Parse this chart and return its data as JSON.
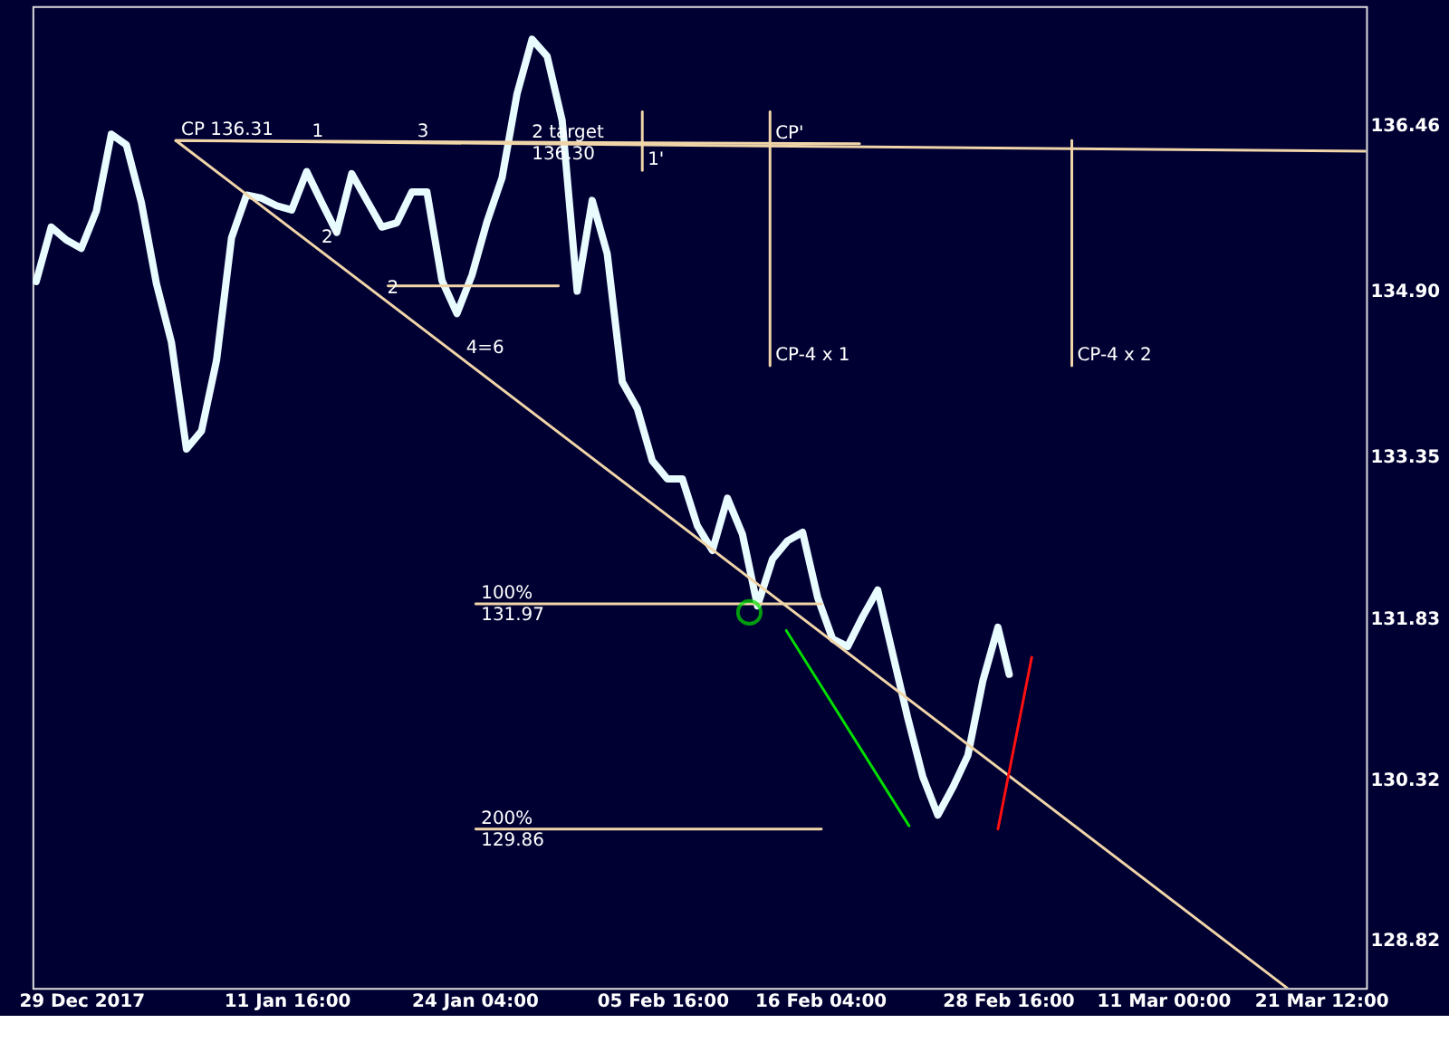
{
  "chart_data": {
    "type": "line",
    "xlim": [
      "2017-12-25T18:00",
      "2018-03-24T12:00"
    ],
    "ylim": [
      128.37,
      137.57
    ],
    "xticks": [
      {
        "value": "2017-12-29",
        "label": "29 Dec 2017"
      },
      {
        "value": "2018-01-11T16:00",
        "label": "11 Jan 16:00"
      },
      {
        "value": "2018-01-24T04:00",
        "label": "24 Jan 04:00"
      },
      {
        "value": "2018-02-05T16:00",
        "label": "05 Feb 16:00"
      },
      {
        "value": "2018-02-16T04:00",
        "label": "16 Feb 04:00"
      },
      {
        "value": "2018-02-28T16:00",
        "label": "28 Feb 16:00"
      },
      {
        "value": "2018-03-11",
        "label": "11 Mar 00:00"
      },
      {
        "value": "2018-03-21T12:00",
        "label": "21 Mar 12:00"
      }
    ],
    "yticks": [
      128.82,
      130.32,
      131.83,
      133.35,
      {
        "value": 134.9,
        "label": "134.90"
      },
      136.46
    ],
    "grid": false,
    "series": [
      {
        "color": "#e8fbff",
        "x": [
          "2017-12-26",
          "2017-12-27",
          "2017-12-28",
          "2017-12-29",
          "2017-12-30",
          "2017-12-31",
          "2018-01-01",
          "2018-01-02",
          "2018-01-03",
          "2018-01-04",
          "2018-01-05",
          "2018-01-06",
          "2018-01-07",
          "2018-01-08",
          "2018-01-09",
          "2018-01-10",
          "2018-01-11",
          "2018-01-12",
          "2018-01-13",
          "2018-01-14",
          "2018-01-15",
          "2018-01-16",
          "2018-01-17",
          "2018-01-18",
          "2018-01-19",
          "2018-01-20",
          "2018-01-21",
          "2018-01-22",
          "2018-01-23",
          "2018-01-24",
          "2018-01-25",
          "2018-01-26",
          "2018-01-27",
          "2018-01-28",
          "2018-01-29",
          "2018-01-30",
          "2018-01-31",
          "2018-02-01",
          "2018-02-02",
          "2018-02-03",
          "2018-02-04",
          "2018-02-05",
          "2018-02-06",
          "2018-02-07",
          "2018-02-08",
          "2018-02-09",
          "2018-02-10",
          "2018-02-11",
          "2018-02-12",
          "2018-02-13",
          "2018-02-14",
          "2018-02-15",
          "2018-02-16",
          "2018-02-17",
          "2018-02-18",
          "2018-02-19",
          "2018-02-20",
          "2018-02-21",
          "2018-02-22",
          "2018-02-23",
          "2018-02-24",
          "2018-02-25",
          "2018-02-26",
          "2018-02-27",
          "2018-02-28",
          "2018-02-28T18:00"
        ],
        "values": [
          134.99,
          135.5,
          135.38,
          135.3,
          135.65,
          136.37,
          136.27,
          135.73,
          134.97,
          134.42,
          133.42,
          133.59,
          134.25,
          135.4,
          135.8,
          135.77,
          135.7,
          135.66,
          136.02,
          135.73,
          135.45,
          136.0,
          135.75,
          135.5,
          135.54,
          135.83,
          135.83,
          135.0,
          134.69,
          135.05,
          135.55,
          135.96,
          136.75,
          137.26,
          137.1,
          136.5,
          134.9,
          135.75,
          135.25,
          134.05,
          133.8,
          133.31,
          133.14,
          133.14,
          132.7,
          132.47,
          132.96,
          132.62,
          131.95,
          132.39,
          132.56,
          132.64,
          132.03,
          131.64,
          131.57,
          131.85,
          132.1,
          131.5,
          130.9,
          130.35,
          129.99,
          130.25,
          130.55,
          131.25,
          131.75,
          131.31
        ]
      },
      {
        "color": "#f0d5a8",
        "x": [
          "2018-01-04T07:00",
          "2018-03-19T06:00"
        ],
        "values": [
          136.31,
          128.37
        ]
      },
      {
        "color": "#f0d5a8",
        "x": [
          "2018-01-04T07:00",
          "2018-03-24T12:00"
        ],
        "values": [
          136.31,
          136.21
        ]
      },
      {
        "color": "#f0d5a8",
        "x": [
          "2018-01-04T07:00",
          "2018-02-18T19:00"
        ],
        "values": [
          136.31,
          136.28
        ]
      },
      {
        "color": "#f0d5a8",
        "x": [
          "2018-01-18T10:00",
          "2018-01-29T18:00"
        ],
        "values": [
          134.95,
          134.95
        ]
      },
      {
        "color": "#f0d5a8",
        "x": [
          "2018-01-24T06:00",
          "2018-02-16T06:00"
        ],
        "values": [
          131.97,
          131.97
        ]
      },
      {
        "color": "#f0d5a8",
        "x": [
          "2018-01-24T06:00",
          "2018-02-16T06:00"
        ],
        "values": [
          129.86,
          129.86
        ]
      },
      {
        "color": "#f0d5a8",
        "x": [
          "2018-02-12T20:00",
          "2018-02-12T20:00"
        ],
        "values": [
          136.58,
          134.2
        ]
      },
      {
        "color": "#f0d5a8",
        "x": [
          "2018-03-04T22:00",
          "2018-03-04T22:00"
        ],
        "values": [
          136.31,
          134.2
        ]
      },
      {
        "color": "#f0d5a8",
        "x": [
          "2018-02-04T08:00",
          "2018-02-04T08:00"
        ],
        "values": [
          136.58,
          136.03
        ]
      },
      {
        "color": "#00dd00",
        "x": [
          "2018-02-13T22:00",
          "2018-02-22T02:00"
        ],
        "values": [
          131.72,
          129.89
        ]
      },
      {
        "color": "#ff1010",
        "x": [
          "2018-02-28T00:00",
          "2018-03-02T06:00"
        ],
        "values": [
          129.86,
          131.47
        ]
      },
      {
        "type": "scatter",
        "color": "#00dd00",
        "x": [
          "2018-02-11T11:00"
        ],
        "values": [
          131.89
        ]
      }
    ],
    "annotations": [
      {
        "text": "CP 136.31",
        "x": "2018-01-04T07:00",
        "y": 136.31
      },
      {
        "text": "1",
        "x": "2018-01-13T00:00",
        "y": 136.3
      },
      {
        "text": "3",
        "x": "2018-01-20T00:00",
        "y": 136.3
      },
      {
        "text": "2 target",
        "x": "2018-01-27T15:00",
        "y": 136.29
      },
      {
        "text": "136.30",
        "x": "2018-01-27T15:00",
        "y": 136.29
      },
      {
        "text": "2'",
        "x": "2018-01-13T15:00",
        "y": 135.3
      },
      {
        "text": "2",
        "x": "2018-01-18T00:00",
        "y": 134.83
      },
      {
        "text": "4=6",
        "x": "2018-01-23T06:00",
        "y": 134.27
      },
      {
        "text": "1'",
        "x": "2018-02-04T08:00",
        "y": 136.03
      },
      {
        "text": "CP'",
        "x": "2018-02-12T20:00",
        "y": 136.28
      },
      {
        "text": "CP-4 x 1",
        "x": "2018-02-12T20:00",
        "y": 134.2
      },
      {
        "text": "CP-4 x 2",
        "x": "2018-03-04T22:00",
        "y": 134.2
      },
      {
        "text": "100%",
        "x": "2018-01-24T06:00",
        "y": 131.97
      },
      {
        "text": "131.97",
        "x": "2018-01-24T06:00",
        "y": 131.97
      },
      {
        "text": "200%",
        "x": "2018-01-24T06:00",
        "y": 129.86
      },
      {
        "text": "129.86",
        "x": "2018-01-24T06:00",
        "y": 129.86
      }
    ]
  }
}
